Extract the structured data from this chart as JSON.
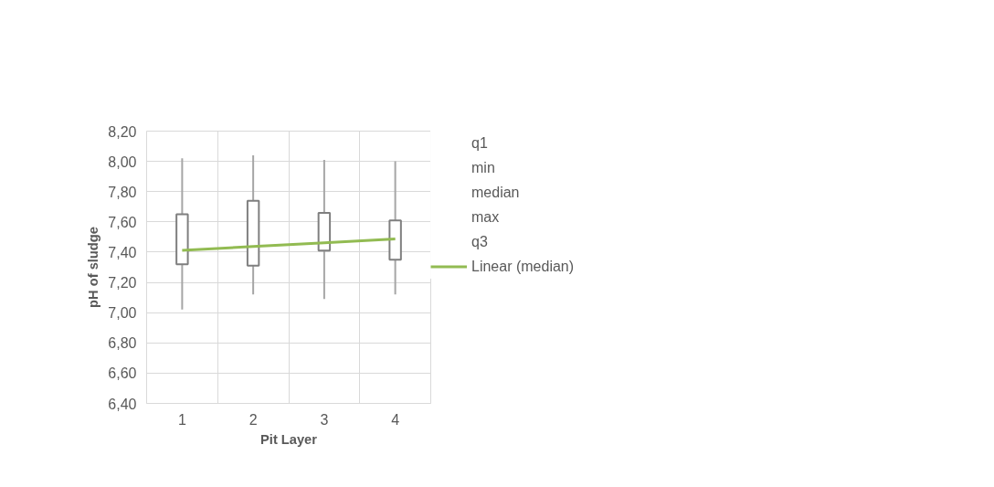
{
  "chart_data": {
    "type": "candlestick",
    "xlabel": "Pit Layer",
    "ylabel": "pH of sludge",
    "categories": [
      "1",
      "2",
      "3",
      "4"
    ],
    "ohlc": [
      [
        7.32,
        8.02,
        7.02,
        7.65
      ],
      [
        7.31,
        8.04,
        7.12,
        7.74
      ],
      [
        7.41,
        8.01,
        7.09,
        7.66
      ],
      [
        7.35,
        8.0,
        7.12,
        7.61
      ]
    ],
    "series": [
      {
        "name": "Linear (median)",
        "type": "line",
        "color": "#92bb52",
        "values": [
          7.412,
          7.437,
          7.462,
          7.487
        ]
      }
    ],
    "annotations": [
      "q1",
      "min",
      "median",
      "max",
      "q3"
    ],
    "ylim": [
      6.4,
      8.2
    ],
    "yticks": [
      {
        "value": 6.4,
        "label": "6,40"
      },
      {
        "value": 6.6,
        "label": "6,60"
      },
      {
        "value": 6.8,
        "label": "6,80"
      },
      {
        "value": 7.0,
        "label": "7,00"
      },
      {
        "value": 7.2,
        "label": "7,20"
      },
      {
        "value": 7.4,
        "label": "7,40"
      },
      {
        "value": 7.6,
        "label": "7,60"
      },
      {
        "value": 7.8,
        "label": "7,80"
      },
      {
        "value": 8.0,
        "label": "8,00"
      },
      {
        "value": 8.2,
        "label": "8,20"
      }
    ],
    "grid": true,
    "legend": "right"
  }
}
